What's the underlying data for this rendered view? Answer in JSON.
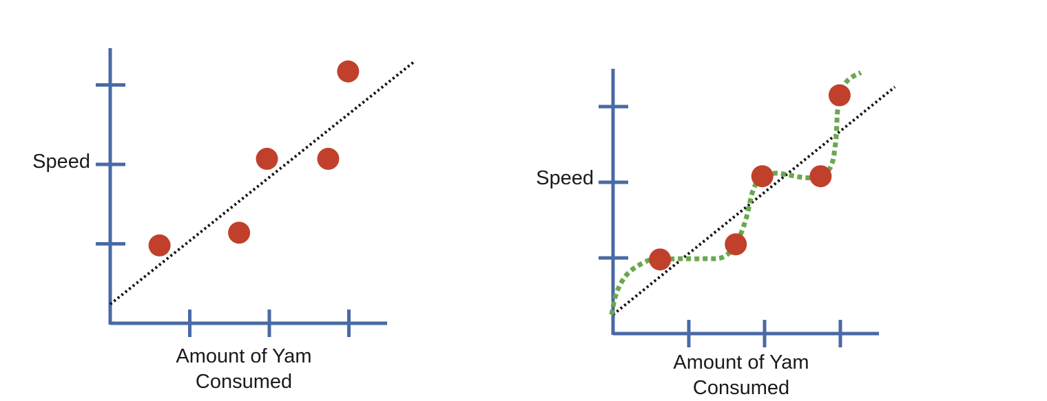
{
  "colors": {
    "axis": "#4a6aa5",
    "point": "#c0402c",
    "linear_fit": "#111111",
    "overfit_curve": "#6aa84f",
    "background": "#ffffff"
  },
  "chart_data": [
    {
      "type": "scatter",
      "title": "",
      "xlabel": [
        "Amount of Yam",
        "Consumed"
      ],
      "ylabel": "Speed",
      "xlim": [
        0,
        3.5
      ],
      "ylim": [
        0,
        3.2
      ],
      "x_ticks": [
        1,
        2,
        3
      ],
      "y_ticks": [
        1,
        2,
        3
      ],
      "tick_labels_shown": false,
      "grid": false,
      "series": [
        {
          "kind": "points",
          "points": [
            [
              0.62,
              0.98
            ],
            [
              1.62,
              1.14
            ],
            [
              1.97,
              2.07
            ],
            [
              2.74,
              2.07
            ],
            [
              2.99,
              3.17
            ]
          ]
        },
        {
          "kind": "line",
          "style": "dotted",
          "points": [
            [
              0,
              0.24
            ],
            [
              3.83,
              3.3
            ]
          ]
        }
      ]
    },
    {
      "type": "scatter",
      "title": "",
      "xlabel": [
        "Amount of Yam",
        "Consumed"
      ],
      "ylabel": "Speed",
      "xlim": [
        0,
        3.5
      ],
      "ylim": [
        0,
        3.5
      ],
      "x_ticks": [
        1,
        2,
        3
      ],
      "y_ticks": [
        1,
        2,
        3
      ],
      "tick_labels_shown": false,
      "grid": false,
      "series": [
        {
          "kind": "points",
          "points": [
            [
              0.62,
              0.98
            ],
            [
              1.62,
              1.18
            ],
            [
              1.97,
              2.08
            ],
            [
              2.74,
              2.08
            ],
            [
              2.99,
              3.15
            ]
          ]
        },
        {
          "kind": "line",
          "style": "dotted",
          "points": [
            [
              0,
              0.25
            ],
            [
              3.72,
              3.26
            ]
          ]
        },
        {
          "kind": "curve",
          "style": "dotted",
          "points": [
            [
              -0.02,
              0.25
            ],
            [
              0.05,
              0.55
            ],
            [
              0.2,
              0.8
            ],
            [
              0.45,
              0.96
            ],
            [
              0.62,
              0.98
            ],
            [
              0.9,
              0.99
            ],
            [
              1.2,
              0.99
            ],
            [
              1.45,
              1.01
            ],
            [
              1.62,
              1.18
            ],
            [
              1.75,
              1.5
            ],
            [
              1.85,
              1.9
            ],
            [
              1.97,
              2.08
            ],
            [
              2.15,
              2.12
            ],
            [
              2.35,
              2.09
            ],
            [
              2.55,
              2.06
            ],
            [
              2.74,
              2.08
            ],
            [
              2.88,
              2.22
            ],
            [
              2.94,
              2.55
            ],
            [
              2.96,
              2.9
            ],
            [
              2.99,
              3.15
            ],
            [
              3.1,
              3.35
            ],
            [
              3.27,
              3.45
            ]
          ]
        }
      ]
    }
  ]
}
